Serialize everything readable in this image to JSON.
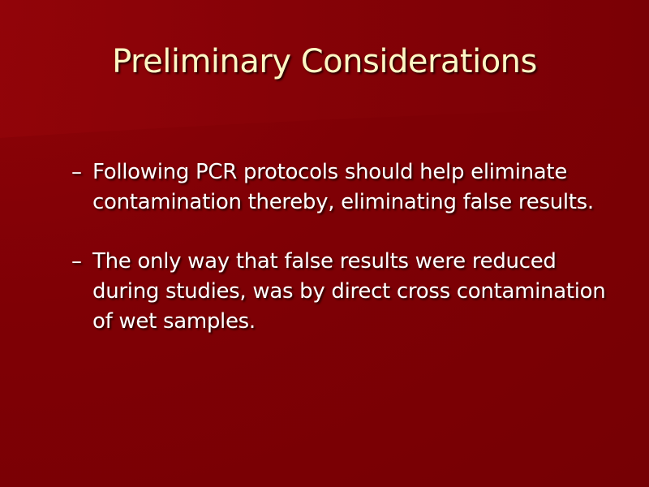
{
  "slide": {
    "title": "Preliminary Considerations",
    "bullets": [
      {
        "marker": "–",
        "text": "Following PCR protocols should help eliminate contamination thereby, eliminating false results."
      },
      {
        "marker": "–",
        "text": "The only way that false results were reduced during studies, was by direct cross contamination of wet samples."
      }
    ]
  },
  "colors": {
    "background": "#7a0006",
    "title_text": "#fdf6c4",
    "body_text": "#ffffff"
  }
}
